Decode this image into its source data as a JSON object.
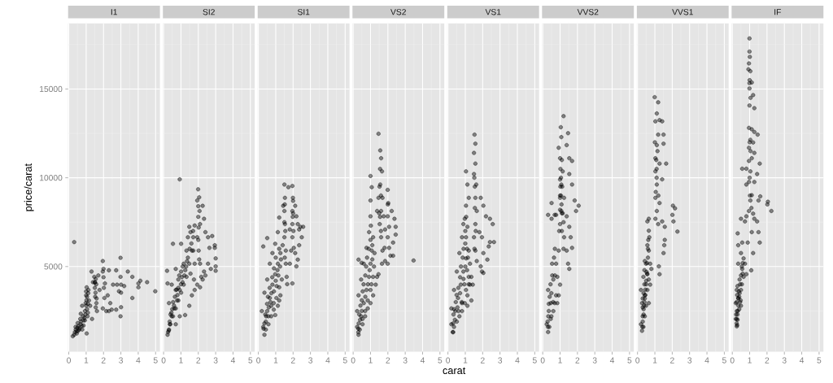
{
  "chart_data": [
    {
      "type": "scatter",
      "title": "I1",
      "ylabel": "price/carat",
      "color": "#000000",
      "marker": "circle",
      "grid": true,
      "xlim": [
        -0.04,
        5.25
      ],
      "ylim": [
        200,
        18700
      ],
      "xticks": [
        0,
        1,
        2,
        3,
        4,
        5
      ],
      "yticks": [
        5000,
        10000,
        15000
      ],
      "x": [
        0.31,
        0.31,
        0.54,
        0.39,
        0.69,
        0.85,
        1.03,
        0.93,
        0.97,
        1.0,
        1.03,
        1.08,
        1.16,
        1.13,
        1.23,
        1.34,
        0.69,
        0.77,
        1.47,
        1.51,
        1.54,
        1.59,
        1.62,
        1.7,
        1.39,
        1.31,
        1.96,
        2.0,
        1.96,
        2.08,
        2.05,
        1.96,
        2.24,
        2.31,
        2.39,
        2.47,
        2.55,
        1.77,
        2.16,
        2.31,
        2.73,
        2.78,
        2.98,
        2.98,
        3.01,
        3.01,
        3.01,
        2.98,
        2.73,
        2.89,
        3.19,
        3.4,
        3.66,
        3.66,
        4.01,
        4.01,
        4.12,
        4.51,
        4.98,
        0.23,
        0.46,
        0.62,
        0.77,
        0.85,
        0.51,
        0.66,
        0.82,
        0.93,
        1.05,
        1.1,
        1.02,
        0.95,
        1.5,
        1.55,
        1.6,
        0.35,
        0.4,
        0.45,
        0.5,
        0.55,
        0.6,
        0.7,
        0.75,
        0.9,
        1.0,
        1.0,
        1.05,
        1.1,
        1.12,
        1.5,
        1.52,
        1.55,
        1.58,
        2.0,
        2.02
      ],
      "values": [
        6380,
        1160,
        1380,
        1600,
        1750,
        1970,
        1230,
        2490,
        2940,
        3380,
        3830,
        2200,
        3090,
        3680,
        2790,
        2050,
        2340,
        2790,
        4420,
        4120,
        3530,
        2940,
        2490,
        4500,
        4120,
        4720,
        5310,
        4870,
        4720,
        4050,
        3230,
        2640,
        3380,
        4790,
        2940,
        2570,
        3980,
        3680,
        2490,
        2490,
        4790,
        3980,
        5490,
        4420,
        3980,
        3530,
        2710,
        2200,
        2570,
        3610,
        3900,
        4720,
        4420,
        3230,
        4050,
        3830,
        4200,
        4120,
        3610,
        1080,
        1230,
        1530,
        1450,
        1680,
        1820,
        2050,
        2200,
        1970,
        2600,
        2900,
        3100,
        2300,
        3800,
        4300,
        3200,
        1300,
        1450,
        1350,
        1550,
        1650,
        1450,
        1900,
        1650,
        2100,
        2800,
        3600,
        3300,
        2400,
        3500,
        4100,
        3300,
        2700,
        4000,
        4400,
        3800
      ]
    },
    {
      "type": "scatter",
      "title": "SI2",
      "color": "#000000",
      "marker": "circle",
      "grid": true,
      "tick_labels": "x",
      "xlim": [
        -0.04,
        5.25
      ],
      "ylim": [
        200,
        18700
      ],
      "xticks": [
        0,
        1,
        2,
        3,
        4,
        5
      ],
      "yticks": [
        5000,
        10000,
        15000
      ],
      "x": [
        0.93,
        0.2,
        0.23,
        0.23,
        0.31,
        0.39,
        0.54,
        0.7,
        0.85,
        1.01,
        1.16,
        0.7,
        0.93,
        1.24,
        1.48,
        1.63,
        1.79,
        1.94,
        0.31,
        0.47,
        0.7,
        0.54,
        1.01,
        0.7,
        0.85,
        1.01,
        1.16,
        1.32,
        1.4,
        1.48,
        1.55,
        1.63,
        1.48,
        1.32,
        1.09,
        0.93,
        0.78,
        0.62,
        0.47,
        0.36,
        0.26,
        1.99,
        1.94,
        2.07,
        2.1,
        1.94,
        2.02,
        2.1,
        2.17,
        2.25,
        2.33,
        2.41,
        2.56,
        2.64,
        2.8,
        2.95,
        2.95,
        3.0,
        3.0,
        3.0,
        2.25,
        2.41,
        2.33,
        2.56,
        2.72,
        1.75,
        1.79,
        1.71,
        1.71,
        1.79,
        2.1,
        1.2,
        1.0,
        0.8,
        1.4,
        1.6,
        2.0,
        2.05,
        0.6,
        0.45,
        1.3,
        0.3,
        0.35,
        0.4,
        0.5,
        0.55,
        0.65,
        0.75,
        0.85,
        0.9,
        1.05,
        1.1,
        1.25,
        1.35,
        1.5,
        1.55,
        1.7,
        2.0,
        2.02,
        2.0,
        2.05
      ],
      "values": [
        9910,
        4760,
        4050,
        1160,
        1450,
        1750,
        2200,
        2640,
        3090,
        3530,
        3980,
        1750,
        2200,
        2270,
        2790,
        3380,
        3680,
        3980,
        2940,
        3980,
        4870,
        6280,
        6280,
        3680,
        4270,
        4720,
        5160,
        5900,
        6650,
        7240,
        6940,
        5900,
        5160,
        4420,
        4120,
        3680,
        3090,
        2640,
        2200,
        1750,
        1310,
        9350,
        8720,
        8130,
        7390,
        6650,
        5900,
        5160,
        4420,
        8420,
        7690,
        6940,
        6650,
        6050,
        6720,
        6200,
        6050,
        5460,
        5010,
        4760,
        4270,
        4500,
        4720,
        5160,
        4870,
        4270,
        5160,
        5900,
        6650,
        7310,
        3830,
        4500,
        4000,
        3400,
        5500,
        6300,
        7800,
        8900,
        2800,
        2400,
        5000,
        1400,
        1900,
        2300,
        2600,
        3000,
        3300,
        3700,
        3800,
        4500,
        4400,
        5000,
        4800,
        5300,
        6000,
        4600,
        7000,
        6500,
        7200,
        8400,
        5400
      ]
    },
    {
      "type": "scatter",
      "title": "SI1",
      "color": "#000000",
      "marker": "circle",
      "grid": true,
      "tick_labels": "x",
      "xlim": [
        -0.04,
        5.25
      ],
      "ylim": [
        200,
        18700
      ],
      "xticks": [
        0,
        1,
        2,
        3,
        4,
        5
      ],
      "yticks": [
        5000,
        10000,
        15000
      ],
      "x": [
        0.28,
        0.51,
        0.35,
        0.28,
        0.43,
        0.58,
        0.74,
        0.89,
        0.97,
        1.12,
        1.2,
        1.27,
        0.2,
        0.35,
        0.51,
        0.66,
        0.81,
        0.97,
        1.12,
        1.2,
        0.51,
        0.66,
        0.81,
        0.97,
        1.12,
        1.27,
        1.35,
        1.2,
        1.04,
        0.89,
        0.74,
        0.58,
        0.43,
        1.5,
        1.53,
        1.5,
        1.53,
        1.5,
        1.58,
        1.58,
        1.63,
        1.66,
        1.43,
        1.73,
        1.96,
        1.99,
        1.96,
        1.96,
        1.96,
        2.04,
        2.12,
        2.19,
        2.27,
        2.35,
        2.42,
        2.58,
        2.5,
        2.35,
        2.27,
        2.19,
        1.81,
        1.89,
        1.81,
        1.96,
        2.12,
        0.6,
        0.9,
        1.0,
        1.1,
        1.3,
        1.4,
        0.7,
        1.55,
        2.0,
        0.45,
        0.3,
        0.35,
        0.4,
        0.5,
        0.55,
        0.65,
        0.75,
        0.8,
        0.9,
        1.0,
        1.05,
        1.15,
        1.2,
        1.25,
        1.5,
        1.52,
        1.52,
        1.98,
        2.0,
        2.02
      ],
      "values": [
        6130,
        6600,
        1160,
        1600,
        1450,
        1750,
        2200,
        2570,
        2270,
        2790,
        3090,
        3380,
        2490,
        3530,
        4270,
        5160,
        5760,
        6280,
        6940,
        7760,
        2490,
        3230,
        3980,
        4570,
        5160,
        5760,
        4270,
        3830,
        3230,
        2940,
        2790,
        2200,
        1900,
        9620,
        8870,
        8130,
        7390,
        6650,
        5900,
        5160,
        4420,
        4010,
        8420,
        9470,
        9540,
        8870,
        8130,
        7390,
        6650,
        6050,
        8420,
        7830,
        7390,
        7090,
        7240,
        7240,
        6650,
        6200,
        5390,
        5010,
        5160,
        5900,
        7090,
        4050,
        5760,
        2700,
        3600,
        4200,
        4800,
        5400,
        6200,
        3000,
        7000,
        8000,
        2200,
        1500,
        1800,
        2300,
        2900,
        3300,
        3800,
        3500,
        4400,
        4900,
        5500,
        3900,
        4500,
        6000,
        5000,
        7500,
        8500,
        5500,
        7800,
        8700,
        7000
      ]
    },
    {
      "type": "scatter",
      "title": "VS2",
      "color": "#000000",
      "marker": "circle",
      "grid": true,
      "tick_labels": "x",
      "xlim": [
        -0.04,
        5.25
      ],
      "ylim": [
        200,
        18700
      ],
      "xticks": [
        0,
        1,
        2,
        3,
        4,
        5
      ],
      "yticks": [
        5000,
        10000,
        15000
      ],
      "x": [
        1.46,
        1.0,
        3.48,
        0.31,
        0.49,
        0.31,
        0.23,
        0.38,
        0.54,
        0.69,
        0.84,
        1.0,
        1.15,
        1.3,
        1.38,
        0.23,
        0.31,
        0.46,
        0.61,
        0.77,
        0.92,
        1.0,
        1.0,
        1.07,
        0.46,
        0.61,
        0.77,
        0.92,
        1.0,
        1.07,
        1.15,
        1.23,
        1.15,
        1.0,
        0.84,
        0.69,
        0.54,
        1.56,
        1.61,
        1.66,
        1.56,
        1.69,
        1.61,
        1.53,
        1.61,
        1.69,
        1.66,
        1.46,
        1.38,
        1.46,
        1.76,
        1.84,
        1.81,
        1.99,
        2.02,
        1.99,
        2.07,
        1.99,
        2.07,
        2.22,
        2.38,
        2.45,
        2.45,
        2.3,
        2.15,
        1.99,
        2.3,
        1.84,
        0.5,
        0.7,
        0.85,
        0.95,
        1.1,
        0.4,
        0.3,
        1.6,
        1.55,
        1.2,
        0.3,
        0.32,
        0.35,
        0.42,
        0.5,
        0.55,
        0.6,
        0.7,
        0.75,
        0.8,
        0.9,
        1.0,
        1.02,
        1.05,
        1.1,
        1.5,
        1.52,
        1.55,
        1.6,
        2.0
      ],
      "values": [
        12480,
        10100,
        5340,
        5390,
        5210,
        1160,
        1600,
        1450,
        1750,
        2200,
        2640,
        2940,
        3380,
        3980,
        4420,
        2490,
        3380,
        4270,
        5160,
        6050,
        6940,
        7830,
        8720,
        9470,
        2200,
        2940,
        3680,
        4420,
        5160,
        5900,
        6650,
        5760,
        4420,
        3680,
        3090,
        2490,
        2050,
        11540,
        11100,
        10360,
        9620,
        8870,
        8130,
        7390,
        6650,
        5900,
        5160,
        4570,
        8130,
        8870,
        7830,
        7090,
        6050,
        9320,
        8580,
        7830,
        7240,
        6650,
        6050,
        8130,
        7690,
        7240,
        6800,
        6350,
        5610,
        5160,
        5610,
        5310,
        2500,
        3300,
        4000,
        4800,
        5400,
        2000,
        1500,
        9000,
        7800,
        5000,
        1300,
        1800,
        2300,
        2800,
        3100,
        3600,
        4000,
        4500,
        5000,
        5500,
        6000,
        6500,
        7300,
        4000,
        6200,
        8000,
        9500,
        10500,
        7000,
        8500
      ]
    },
    {
      "type": "scatter",
      "title": "VS1",
      "xlabel": "carat",
      "color": "#000000",
      "marker": "circle",
      "grid": true,
      "tick_labels": "x",
      "xlim": [
        -0.04,
        5.25
      ],
      "ylim": [
        200,
        18700
      ],
      "xticks": [
        0,
        1,
        2,
        3,
        4,
        5
      ],
      "yticks": [
        5000,
        10000,
        15000
      ],
      "x": [
        1.53,
        1.58,
        1.5,
        1.58,
        1.5,
        1.63,
        1.58,
        1.66,
        1.58,
        1.5,
        1.58,
        1.66,
        1.04,
        1.12,
        1.2,
        1.04,
        0.97,
        1.12,
        1.04,
        1.2,
        1.27,
        1.35,
        1.43,
        1.89,
        2.04,
        2.19,
        2.42,
        2.58,
        2.65,
        2.42,
        2.35,
        2.27,
        2.04,
        1.96,
        2.04,
        1.89,
        1.81,
        1.96,
        0.28,
        0.2,
        0.35,
        0.51,
        0.66,
        0.81,
        0.97,
        1.12,
        1.27,
        0.2,
        0.35,
        0.51,
        0.66,
        0.81,
        0.89,
        0.43,
        0.58,
        0.74,
        0.89,
        1.04,
        1.2,
        1.04,
        0.81,
        0.61,
        1.35,
        1.12,
        0.4,
        0.55,
        0.7,
        0.9,
        1.0,
        1.1,
        0.3,
        1.55,
        1.6,
        0.8,
        0.3,
        0.32,
        0.35,
        0.45,
        0.5,
        0.6,
        0.7,
        0.75,
        0.85,
        0.9,
        1.0,
        1.05,
        1.0,
        1.1,
        1.15,
        1.52,
        1.55,
        1.53,
        1.2,
        0.95
      ],
      "values": [
        12430,
        11920,
        11400,
        10800,
        10210,
        9620,
        8870,
        8130,
        7390,
        6650,
        5900,
        5310,
        10360,
        9620,
        8870,
        8430,
        7690,
        7240,
        6650,
        5900,
        5160,
        4420,
        3980,
        8870,
        8430,
        7830,
        7690,
        7390,
        6380,
        6380,
        6130,
        5390,
        5760,
        4720,
        4640,
        5010,
        6940,
        6650,
        1310,
        1750,
        1600,
        1900,
        2200,
        2490,
        2940,
        3380,
        3980,
        2640,
        3680,
        4720,
        5760,
        6650,
        7390,
        2490,
        3230,
        3980,
        4720,
        5460,
        4420,
        3680,
        2940,
        2490,
        3090,
        2790,
        2000,
        2700,
        3500,
        4300,
        5000,
        6000,
        1800,
        9500,
        7000,
        3000,
        1300,
        2300,
        2600,
        3000,
        3400,
        3800,
        4400,
        5000,
        5500,
        6000,
        7000,
        7800,
        6300,
        4800,
        5500,
        10000,
        8300,
        6000,
        4000,
        4000
      ]
    },
    {
      "type": "scatter",
      "title": "VVS2",
      "color": "#000000",
      "marker": "circle",
      "grid": true,
      "tick_labels": "x",
      "xlim": [
        -0.04,
        5.25
      ],
      "ylim": [
        200,
        18700
      ],
      "xticks": [
        0,
        1,
        2,
        3,
        4,
        5
      ],
      "yticks": [
        5000,
        10000,
        15000
      ],
      "x": [
        1.2,
        1.04,
        1.07,
        1.46,
        1.38,
        1.53,
        1.69,
        0.92,
        1.0,
        1.15,
        1.07,
        1.0,
        1.23,
        1.07,
        1.0,
        1.23,
        1.38,
        1.46,
        1.53,
        1.53,
        1.69,
        1.84,
        1.92,
        2.07,
        1.53,
        1.61,
        1.69,
        1.38,
        0.31,
        0.51,
        0.51,
        0.69,
        0.77,
        0.31,
        0.23,
        0.38,
        0.46,
        0.61,
        0.69,
        0.77,
        0.46,
        0.31,
        0.61,
        0.77,
        0.92,
        0.84,
        0.92,
        0.84,
        1.0,
        0.54,
        1.0,
        1.05,
        1.1,
        0.95,
        1.02,
        0.7,
        0.5,
        0.35,
        1.1,
        1.2,
        0.3,
        0.32,
        0.35,
        0.4,
        0.45,
        0.55,
        0.6,
        0.65,
        0.7,
        1.0,
        1.02,
        1.05,
        1.08,
        1.1,
        1.12,
        1.15,
        1.2,
        0.28,
        0.5,
        1.0
      ],
      "values": [
        13470,
        12850,
        12290,
        12510,
        11840,
        11100,
        10950,
        11690,
        11100,
        10360,
        9620,
        8870,
        8870,
        8130,
        7390,
        6650,
        5900,
        5160,
        4870,
        10210,
        9620,
        8720,
        8130,
        8430,
        7240,
        6650,
        6050,
        7830,
        7910,
        8580,
        7690,
        7910,
        7910,
        1310,
        1750,
        1600,
        2050,
        2490,
        2940,
        3380,
        2940,
        3680,
        4270,
        5160,
        5900,
        4420,
        3380,
        2940,
        3980,
        5160,
        9000,
        10000,
        8000,
        7000,
        9500,
        4500,
        3500,
        2500,
        11000,
        7500,
        1600,
        2200,
        2900,
        3300,
        4000,
        4500,
        3000,
        5500,
        6000,
        9900,
        10500,
        9000,
        8500,
        7000,
        9500,
        8000,
        6000,
        1900,
        2200,
        8200
      ]
    },
    {
      "type": "scatter",
      "title": "VVS1",
      "color": "#000000",
      "marker": "circle",
      "grid": true,
      "tick_labels": "x",
      "xlim": [
        -0.04,
        5.25
      ],
      "ylim": [
        200,
        18700
      ],
      "xticks": [
        0,
        1,
        2,
        3,
        4,
        5
      ],
      "yticks": [
        5000,
        10000,
        15000
      ],
      "x": [
        0.99,
        1.19,
        1.11,
        1.03,
        1.27,
        1.42,
        1.19,
        1.5,
        1.11,
        1.5,
        1.03,
        1.27,
        1.65,
        1.03,
        1.42,
        1.11,
        1.03,
        1.27,
        1.11,
        1.03,
        1.19,
        1.42,
        1.57,
        2.04,
        2.16,
        2.01,
        2.07,
        2.3,
        1.57,
        1.54,
        1.5,
        1.27,
        1.23,
        0.65,
        0.57,
        0.26,
        0.2,
        0.34,
        0.42,
        0.49,
        0.57,
        0.65,
        0.73,
        0.65,
        0.68,
        0.65,
        0.57,
        0.42,
        0.34,
        0.2,
        0.26,
        0.42,
        0.57,
        0.49,
        0.65,
        0.73,
        0.8,
        0.3,
        0.35,
        0.4,
        0.45,
        0.5,
        0.55,
        0.6,
        0.3,
        0.4,
        1.1,
        0.28,
        0.3,
        0.35,
        0.38,
        0.42,
        0.45,
        0.5,
        0.52,
        0.55,
        0.6,
        0.62,
        0.3,
        0.35,
        0.4,
        1.05,
        1.1,
        1.15,
        1.0,
        1.2,
        1.08
      ],
      "values": [
        14540,
        14250,
        13620,
        13180,
        13250,
        13180,
        12430,
        12430,
        11840,
        11920,
        11100,
        10800,
        10800,
        10360,
        9910,
        9620,
        8870,
        8580,
        8130,
        7690,
        7390,
        7540,
        7240,
        8430,
        8280,
        7910,
        7540,
        6970,
        6500,
        6200,
        5760,
        4570,
        5010,
        7690,
        7540,
        1380,
        1750,
        1600,
        2200,
        2790,
        3680,
        4270,
        5160,
        5900,
        6650,
        7020,
        6200,
        5310,
        4420,
        3680,
        2940,
        3380,
        4570,
        5160,
        2940,
        3980,
        4870,
        2200,
        2600,
        3000,
        3400,
        4000,
        4600,
        5500,
        3200,
        4800,
        10000,
        1600,
        1900,
        2300,
        2800,
        3200,
        3700,
        4200,
        4700,
        5200,
        6000,
        6500,
        2700,
        3500,
        4000,
        9200,
        10500,
        11500,
        12000,
        9000,
        11000
      ]
    },
    {
      "type": "scatter",
      "title": "IF",
      "color": "#000000",
      "marker": "circle",
      "grid": true,
      "tick_labels": "x",
      "xlim": [
        -0.04,
        5.25
      ],
      "ylim": [
        200,
        18700
      ],
      "xticks": [
        0,
        1,
        2,
        3,
        4,
        5
      ],
      "yticks": [
        5000,
        10000,
        15000
      ],
      "x": [
        0.99,
        0.99,
        1.01,
        0.96,
        0.93,
        1.04,
        0.99,
        1.12,
        0.99,
        1.2,
        0.99,
        1.27,
        0.96,
        1.12,
        1.27,
        1.46,
        1.04,
        1.2,
        0.96,
        1.27,
        0.96,
        1.12,
        1.58,
        0.57,
        0.81,
        1.04,
        1.43,
        0.96,
        1.27,
        0.81,
        1.12,
        1.04,
        1.51,
        1.61,
        2.05,
        2.25,
        2.02,
        0.96,
        1.2,
        0.81,
        0.5,
        0.73,
        1.27,
        1.43,
        1.51,
        1.58,
        0.31,
        0.34,
        0.57,
        0.89,
        1.12,
        1.2,
        1.09,
        0.26,
        0.2,
        0.26,
        0.2,
        0.26,
        0.42,
        0.57,
        0.65,
        0.5,
        0.34,
        0.34,
        0.5,
        0.65,
        0.73,
        0.81,
        0.5,
        0.26,
        0.3,
        0.35,
        0.4,
        0.3,
        0.45,
        0.55,
        0.6,
        0.25,
        1.0,
        1.05,
        0.28,
        0.3,
        0.32,
        0.35,
        0.38,
        0.42,
        0.45,
        0.5,
        0.55,
        0.6,
        0.25,
        0.28,
        0.4,
        0.48,
        0.22,
        1.0,
        1.02,
        1.05,
        1.0,
        1.1
      ],
      "values": [
        17850,
        17110,
        16810,
        16440,
        16110,
        16000,
        15330,
        15370,
        15030,
        14660,
        14070,
        13920,
        12810,
        12730,
        12580,
        12430,
        12140,
        11990,
        11690,
        11400,
        10950,
        11100,
        10800,
        10510,
        10510,
        10360,
        10210,
        9760,
        9760,
        9620,
        9020,
        8720,
        8720,
        8950,
        8650,
        8130,
        8500,
        8130,
        7980,
        7830,
        7690,
        7540,
        7690,
        7540,
        6940,
        6350,
        6870,
        6200,
        6350,
        6350,
        6940,
        5760,
        4790,
        1630,
        2050,
        2490,
        2940,
        3680,
        4270,
        4870,
        5460,
        5760,
        5160,
        3230,
        3680,
        4420,
        5160,
        4570,
        2790,
        2050,
        2300,
        2800,
        3300,
        3900,
        3000,
        4000,
        4600,
        1800,
        10000,
        11500,
        1700,
        2000,
        2500,
        3200,
        3600,
        3500,
        4000,
        4500,
        5000,
        5200,
        3000,
        3400,
        2600,
        3100,
        2300,
        12000,
        9000,
        14500,
        15500,
        8300
      ]
    }
  ]
}
